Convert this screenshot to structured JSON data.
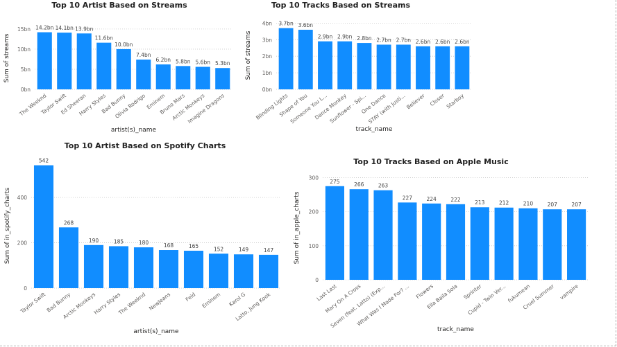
{
  "colors": {
    "bar": "#118dff",
    "background": "#ffffff"
  },
  "chart_data": [
    {
      "type": "bar",
      "title": "Top 10 Artist Based on Streams",
      "xlabel": "artist(s)_name",
      "ylabel": "Sum of streams",
      "categories": [
        "The Weeknd",
        "Taylor Swift",
        "Ed Sheeran",
        "Harry Styles",
        "Bad Bunny",
        "Olivia Rodrigo",
        "Eminem",
        "Bruno Mars",
        "Arctic Monkeys",
        "Imagine Dragons"
      ],
      "values": [
        14.2,
        14.1,
        13.9,
        11.6,
        10.0,
        7.4,
        6.2,
        5.8,
        5.6,
        5.3
      ],
      "data_labels": [
        "14.2bn",
        "14.1bn",
        "13.9bn",
        "11.6bn",
        "10.0bn",
        "7.4bn",
        "6.2bn",
        "5.8bn",
        "5.6bn",
        "5.3bn"
      ],
      "yticks": [
        0,
        5,
        10,
        15
      ],
      "ytick_labels": [
        "0bn",
        "5bn",
        "10bn",
        "15bn"
      ],
      "ylim": [
        0,
        15.5
      ],
      "grid": true,
      "legend": "none"
    },
    {
      "type": "bar",
      "title": "Top 10 Tracks Based on Streams",
      "xlabel": "track_name",
      "ylabel": "Sum of streams",
      "categories": [
        "Blinding Lights",
        "Shape of You",
        "Someone You L...",
        "Dance Monkey",
        "Sunflower - Spi...",
        "One Dance",
        "STAY (with Justi...",
        "Believer",
        "Closer",
        "Starboy"
      ],
      "values": [
        3.7,
        3.6,
        2.9,
        2.9,
        2.8,
        2.7,
        2.7,
        2.6,
        2.6,
        2.6
      ],
      "data_labels": [
        "3.7bn",
        "3.6bn",
        "2.9bn",
        "2.9bn",
        "2.8bn",
        "2.7bn",
        "2.7bn",
        "2.6bn",
        "2.6bn",
        "2.6bn"
      ],
      "yticks": [
        0,
        1,
        2,
        3,
        4
      ],
      "ytick_labels": [
        "0bn",
        "1bn",
        "2bn",
        "3bn",
        "4bn"
      ],
      "ylim": [
        0,
        4.1
      ],
      "grid": true,
      "legend": "none"
    },
    {
      "type": "bar",
      "title": "Top 10 Artist Based on Spotify Charts",
      "xlabel": "artist(s)_name",
      "ylabel": "Sum of in_spotify_charts",
      "categories": [
        "Taylor Swift",
        "Bad Bunny",
        "Arctic Monkeys",
        "Harry Styles",
        "The Weeknd",
        "NewJeans",
        "Feid",
        "Eminem",
        "Karol G",
        "Latto, Jung Kook"
      ],
      "values": [
        542,
        268,
        190,
        185,
        180,
        168,
        165,
        152,
        149,
        147
      ],
      "data_labels": [
        "542",
        "268",
        "190",
        "185",
        "180",
        "168",
        "165",
        "152",
        "149",
        "147"
      ],
      "yticks": [
        0,
        200,
        400
      ],
      "ytick_labels": [
        "0",
        "200",
        "400"
      ],
      "ylim": [
        0,
        550
      ],
      "grid": true,
      "legend": "none"
    },
    {
      "type": "bar",
      "title": "Top 10 Tracks Based on Apple Music",
      "xlabel": "track_name",
      "ylabel": "Sum of in_apple_charts",
      "categories": [
        "Last Last",
        "Mary On A Cross",
        "Seven (feat. Latto) (Exp...",
        "What Was I Made For? ...",
        "Flowers",
        "Ella Baila Sola",
        "Sprinter",
        "Cupid - Twin Ver...",
        "fukumean",
        "Cruel Summer",
        "vampire"
      ],
      "values": [
        275,
        266,
        263,
        227,
        224,
        222,
        213,
        212,
        210,
        207,
        207
      ],
      "data_labels": [
        "275",
        "266",
        "263",
        "227",
        "224",
        "222",
        "213",
        "212",
        "210",
        "207",
        "207"
      ],
      "yticks": [
        0,
        100,
        200,
        300
      ],
      "ytick_labels": [
        "0",
        "100",
        "200",
        "300"
      ],
      "ylim": [
        0,
        305
      ],
      "grid": true,
      "legend": "none"
    }
  ]
}
